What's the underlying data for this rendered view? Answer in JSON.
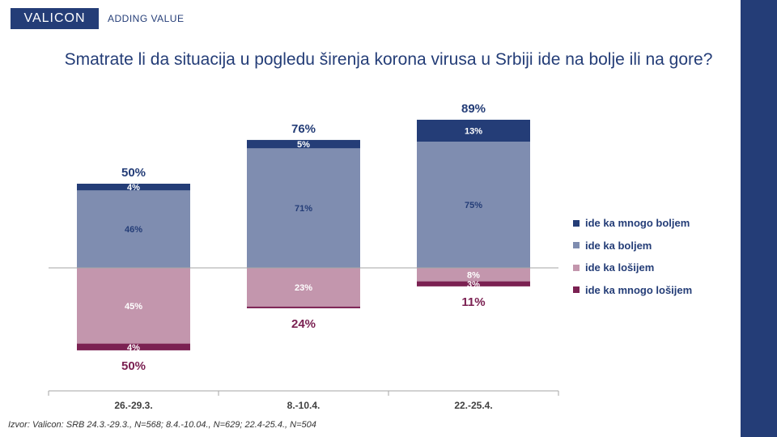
{
  "header": {
    "logo_text": "VALICON",
    "tagline": "ADDING VALUE"
  },
  "title": "Smatrate li da situacija u pogledu širenja korona virusa u Srbiji ide na bolje ili na gore?",
  "source": "Izvor: Valicon: SRB 24.3.-29.3., N=568; 8.4.-10.04., N=629; 22.4-25.4., N=504",
  "colors": {
    "brand": "#243d77",
    "much_better": "#243d77",
    "better": "#7f8db0",
    "worse": "#c396ad",
    "much_worse": "#7b2152",
    "axis": "#a6a6a6",
    "positive_total_text": "#243d77",
    "negative_total_text": "#7b2152"
  },
  "chart_data": {
    "type": "bar",
    "stacked": "diverging",
    "categories": [
      "26.-29.3.",
      "8.-10.4.",
      "22.-25.4."
    ],
    "series": [
      {
        "name": "ide ka mnogo boljem",
        "values": [
          4,
          5,
          13
        ],
        "labels": [
          "4%",
          "5%",
          "13%"
        ],
        "color": "#243d77",
        "direction": "positive"
      },
      {
        "name": "ide ka boljem",
        "values": [
          46,
          71,
          75
        ],
        "labels": [
          "46%",
          "71%",
          "75%"
        ],
        "color": "#7f8db0",
        "direction": "positive"
      },
      {
        "name": "ide ka lošijem",
        "values": [
          45,
          23,
          8
        ],
        "labels": [
          "45%",
          "23%",
          "8%"
        ],
        "color": "#c396ad",
        "direction": "negative"
      },
      {
        "name": "ide ka mnogo lošijem",
        "values": [
          4,
          1,
          3
        ],
        "labels": [
          "4%",
          "",
          "3%"
        ],
        "color": "#7b2152",
        "direction": "negative"
      }
    ],
    "positive_totals": [
      "50%",
      "76%",
      "89%"
    ],
    "negative_totals": [
      "50%",
      "24%",
      "11%"
    ],
    "ylim": [
      -55,
      95
    ],
    "legend_position": "right",
    "grid": false
  }
}
